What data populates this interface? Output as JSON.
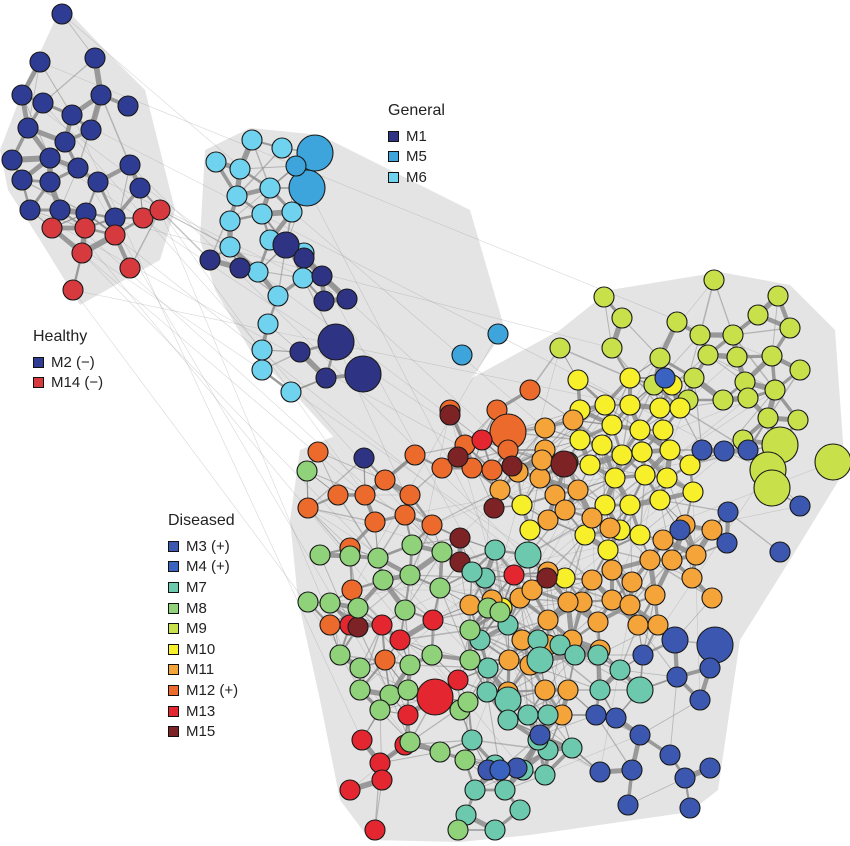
{
  "colors": {
    "M1": "#2e3483",
    "M5": "#3ea5dc",
    "M6": "#6fd2ee",
    "M2": "#2f3c93",
    "M14": "#d63a3f",
    "M3": "#3b57b0",
    "M4": "#3a62c0",
    "M7": "#6cc9ae",
    "M8": "#8fd27a",
    "M9": "#c8e04a",
    "M10": "#f7ef2a",
    "M11": "#f5a43a",
    "M12": "#ec6b2c",
    "M13": "#e3262f",
    "M15": "#7d2225"
  },
  "legends": [
    {
      "id": "general",
      "title": "General",
      "items": [
        {
          "key": "M1",
          "label": "M1"
        },
        {
          "key": "M5",
          "label": "M5"
        },
        {
          "key": "M6",
          "label": "M6"
        }
      ]
    },
    {
      "id": "healthy",
      "title": "Healthy",
      "items": [
        {
          "key": "M2",
          "label": "M2 (−)"
        },
        {
          "key": "M14",
          "label": "M14 (−)"
        }
      ]
    },
    {
      "id": "diseased",
      "title": "Diseased",
      "items": [
        {
          "key": "M3",
          "label": "M3 (+)"
        },
        {
          "key": "M4",
          "label": "M4 (+)"
        },
        {
          "key": "M7",
          "label": "M7"
        },
        {
          "key": "M8",
          "label": "M8"
        },
        {
          "key": "M9",
          "label": "M9"
        },
        {
          "key": "M10",
          "label": "M10"
        },
        {
          "key": "M11",
          "label": "M11"
        },
        {
          "key": "M12",
          "label": "M12 (+)"
        },
        {
          "key": "M13",
          "label": "M13"
        },
        {
          "key": "M15",
          "label": "M15"
        }
      ]
    }
  ],
  "modules": {
    "M2": [
      [
        62,
        14,
        "s"
      ],
      [
        40,
        62,
        "s"
      ],
      [
        95,
        58,
        "s"
      ],
      [
        22,
        95,
        "s"
      ],
      [
        43,
        103,
        "s"
      ],
      [
        72,
        115,
        "s"
      ],
      [
        101,
        95,
        "s"
      ],
      [
        128,
        106,
        "s"
      ],
      [
        28,
        128,
        "s"
      ],
      [
        65,
        142,
        "s"
      ],
      [
        91,
        130,
        "s"
      ],
      [
        12,
        160,
        "s"
      ],
      [
        50,
        158,
        "s"
      ],
      [
        98,
        182,
        "s"
      ],
      [
        130,
        165,
        "s"
      ],
      [
        22,
        180,
        "s"
      ],
      [
        50,
        182,
        "s"
      ],
      [
        78,
        168,
        "s"
      ],
      [
        30,
        210,
        "s"
      ],
      [
        60,
        210,
        "s"
      ],
      [
        86,
        213,
        "s"
      ],
      [
        115,
        218,
        "s"
      ],
      [
        140,
        188,
        "s"
      ]
    ],
    "M14": [
      [
        52,
        228,
        "s"
      ],
      [
        85,
        228,
        "s"
      ],
      [
        115,
        235,
        "s"
      ],
      [
        143,
        218,
        "s"
      ],
      [
        160,
        210,
        "s"
      ],
      [
        82,
        253,
        "s"
      ],
      [
        130,
        268,
        "s"
      ],
      [
        73,
        290,
        "s"
      ]
    ],
    "M5": [
      [
        315,
        153,
        "l"
      ],
      [
        307,
        188,
        "l"
      ],
      [
        296,
        166,
        "s"
      ],
      [
        462,
        355,
        "s"
      ],
      [
        498,
        334,
        "s"
      ]
    ],
    "M6": [
      [
        252,
        140,
        "s"
      ],
      [
        216,
        162,
        "s"
      ],
      [
        240,
        169,
        "s"
      ],
      [
        282,
        148,
        "s"
      ],
      [
        270,
        188,
        "s"
      ],
      [
        237,
        196,
        "s"
      ],
      [
        262,
        214,
        "s"
      ],
      [
        292,
        212,
        "s"
      ],
      [
        230,
        221,
        "s"
      ],
      [
        270,
        240,
        "s"
      ],
      [
        230,
        247,
        "s"
      ],
      [
        304,
        253,
        "s"
      ],
      [
        258,
        272,
        "s"
      ],
      [
        303,
        278,
        "s"
      ],
      [
        278,
        296,
        "s"
      ],
      [
        268,
        324,
        "s"
      ],
      [
        262,
        350,
        "s"
      ],
      [
        262,
        370,
        "s"
      ],
      [
        291,
        392,
        "s"
      ]
    ],
    "M1": [
      [
        286,
        245,
        "m"
      ],
      [
        210,
        260,
        "s"
      ],
      [
        240,
        268,
        "s"
      ],
      [
        304,
        258,
        "s"
      ],
      [
        322,
        276,
        "s"
      ],
      [
        324,
        301,
        "s"
      ],
      [
        347,
        299,
        "s"
      ],
      [
        336,
        342,
        "l"
      ],
      [
        300,
        352,
        "s"
      ],
      [
        326,
        378,
        "s"
      ],
      [
        363,
        374,
        "l"
      ],
      [
        364,
        458,
        "s"
      ]
    ],
    "M9": [
      [
        604,
        297,
        "s"
      ],
      [
        714,
        280,
        "s"
      ],
      [
        778,
        296,
        "s"
      ],
      [
        677,
        322,
        "s"
      ],
      [
        622,
        318,
        "s"
      ],
      [
        560,
        348,
        "s"
      ],
      [
        612,
        348,
        "s"
      ],
      [
        700,
        335,
        "s"
      ],
      [
        758,
        315,
        "s"
      ],
      [
        790,
        328,
        "s"
      ],
      [
        733,
        335,
        "s"
      ],
      [
        708,
        355,
        "s"
      ],
      [
        737,
        357,
        "s"
      ],
      [
        772,
        356,
        "s"
      ],
      [
        660,
        358,
        "s"
      ],
      [
        694,
        378,
        "s"
      ],
      [
        745,
        382,
        "s"
      ],
      [
        800,
        370,
        "s"
      ],
      [
        654,
        385,
        "s"
      ],
      [
        723,
        400,
        "s"
      ],
      [
        775,
        390,
        "s"
      ],
      [
        688,
        400,
        "s"
      ],
      [
        748,
        398,
        "s"
      ],
      [
        768,
        418,
        "s"
      ],
      [
        743,
        440,
        "s"
      ],
      [
        780,
        445,
        "l"
      ],
      [
        833,
        462,
        "l"
      ],
      [
        768,
        470,
        "l"
      ],
      [
        772,
        488,
        "l"
      ],
      [
        798,
        420,
        "s"
      ]
    ],
    "M10": [
      [
        630,
        378,
        "s"
      ],
      [
        672,
        385,
        "s"
      ],
      [
        578,
        380,
        "s"
      ],
      [
        605,
        405,
        "s"
      ],
      [
        630,
        405,
        "s"
      ],
      [
        660,
        408,
        "s"
      ],
      [
        680,
        408,
        "s"
      ],
      [
        580,
        410,
        "s"
      ],
      [
        612,
        425,
        "s"
      ],
      [
        640,
        430,
        "s"
      ],
      [
        663,
        430,
        "s"
      ],
      [
        670,
        450,
        "s"
      ],
      [
        642,
        452,
        "s"
      ],
      [
        622,
        455,
        "s"
      ],
      [
        602,
        445,
        "s"
      ],
      [
        580,
        440,
        "s"
      ],
      [
        590,
        465,
        "s"
      ],
      [
        615,
        478,
        "s"
      ],
      [
        645,
        475,
        "s"
      ],
      [
        667,
        478,
        "s"
      ],
      [
        690,
        465,
        "s"
      ],
      [
        693,
        492,
        "s"
      ],
      [
        660,
        500,
        "s"
      ],
      [
        630,
        505,
        "s"
      ],
      [
        605,
        505,
        "s"
      ],
      [
        620,
        530,
        "s"
      ],
      [
        585,
        535,
        "s"
      ],
      [
        608,
        550,
        "s"
      ],
      [
        522,
        505,
        "s"
      ],
      [
        530,
        530,
        "s"
      ],
      [
        502,
        608,
        "s"
      ],
      [
        565,
        578,
        "s"
      ],
      [
        640,
        535,
        "s"
      ]
    ],
    "M11": [
      [
        545,
        428,
        "s"
      ],
      [
        573,
        420,
        "s"
      ],
      [
        545,
        450,
        "s"
      ],
      [
        568,
        462,
        "s"
      ],
      [
        540,
        478,
        "s"
      ],
      [
        555,
        495,
        "s"
      ],
      [
        548,
        520,
        "s"
      ],
      [
        565,
        510,
        "s"
      ],
      [
        578,
        490,
        "s"
      ],
      [
        592,
        518,
        "s"
      ],
      [
        610,
        528,
        "s"
      ],
      [
        612,
        570,
        "s"
      ],
      [
        592,
        580,
        "s"
      ],
      [
        582,
        602,
        "s"
      ],
      [
        598,
        622,
        "s"
      ],
      [
        568,
        602,
        "s"
      ],
      [
        548,
        620,
        "s"
      ],
      [
        548,
        645,
        "s"
      ],
      [
        572,
        640,
        "s"
      ],
      [
        600,
        650,
        "s"
      ],
      [
        612,
        600,
        "s"
      ],
      [
        632,
        582,
        "s"
      ],
      [
        655,
        595,
        "s"
      ],
      [
        650,
        560,
        "s"
      ],
      [
        672,
        560,
        "s"
      ],
      [
        692,
        578,
        "s"
      ],
      [
        712,
        598,
        "s"
      ],
      [
        696,
        555,
        "s"
      ],
      [
        663,
        540,
        "s"
      ],
      [
        685,
        525,
        "s"
      ],
      [
        712,
        530,
        "s"
      ],
      [
        630,
        605,
        "s"
      ],
      [
        658,
        625,
        "s"
      ],
      [
        638,
        625,
        "s"
      ],
      [
        542,
        460,
        "s"
      ],
      [
        518,
        472,
        "s"
      ],
      [
        500,
        490,
        "s"
      ],
      [
        509,
        660,
        "s"
      ],
      [
        522,
        640,
        "s"
      ],
      [
        545,
        690,
        "s"
      ],
      [
        568,
        690,
        "s"
      ],
      [
        562,
        715,
        "s"
      ],
      [
        508,
        692,
        "s"
      ],
      [
        492,
        600,
        "s"
      ],
      [
        520,
        598,
        "s"
      ],
      [
        470,
        605,
        "s"
      ],
      [
        548,
        572,
        "s"
      ],
      [
        532,
        590,
        "s"
      ],
      [
        530,
        665,
        "s"
      ]
    ],
    "M12": [
      [
        318,
        452,
        "s"
      ],
      [
        308,
        508,
        "s"
      ],
      [
        338,
        495,
        "s"
      ],
      [
        365,
        495,
        "s"
      ],
      [
        385,
        480,
        "s"
      ],
      [
        410,
        495,
        "s"
      ],
      [
        415,
        455,
        "s"
      ],
      [
        442,
        468,
        "s"
      ],
      [
        432,
        525,
        "s"
      ],
      [
        405,
        515,
        "s"
      ],
      [
        375,
        522,
        "s"
      ],
      [
        350,
        548,
        "s"
      ],
      [
        465,
        445,
        "s"
      ],
      [
        472,
        468,
        "s"
      ],
      [
        497,
        410,
        "s"
      ],
      [
        508,
        432,
        "l"
      ],
      [
        530,
        390,
        "s"
      ],
      [
        450,
        410,
        "s"
      ],
      [
        492,
        470,
        "s"
      ],
      [
        508,
        450,
        "s"
      ],
      [
        385,
        660,
        "s"
      ],
      [
        330,
        625,
        "s"
      ],
      [
        352,
        590,
        "s"
      ]
    ],
    "M13": [
      [
        482,
        440,
        "s"
      ],
      [
        514,
        575,
        "s"
      ],
      [
        350,
        625,
        "s"
      ],
      [
        382,
        625,
        "s"
      ],
      [
        400,
        640,
        "s"
      ],
      [
        433,
        620,
        "s"
      ],
      [
        435,
        697,
        "l"
      ],
      [
        458,
        680,
        "s"
      ],
      [
        408,
        715,
        "s"
      ],
      [
        362,
        740,
        "s"
      ],
      [
        405,
        745,
        "s"
      ],
      [
        380,
        763,
        "s"
      ],
      [
        350,
        790,
        "s"
      ],
      [
        382,
        780,
        "s"
      ],
      [
        375,
        830,
        "s"
      ]
    ],
    "M15": [
      [
        450,
        415,
        "s"
      ],
      [
        458,
        457,
        "s"
      ],
      [
        512,
        466,
        "s"
      ],
      [
        564,
        464,
        "m"
      ],
      [
        494,
        508,
        "s"
      ],
      [
        460,
        538,
        "s"
      ],
      [
        460,
        562,
        "s"
      ],
      [
        547,
        578,
        "s"
      ],
      [
        358,
        627,
        "s"
      ]
    ],
    "M7": [
      [
        495,
        550,
        "s"
      ],
      [
        528,
        555,
        "m"
      ],
      [
        485,
        578,
        "s"
      ],
      [
        472,
        572,
        "s"
      ],
      [
        480,
        640,
        "s"
      ],
      [
        508,
        625,
        "s"
      ],
      [
        538,
        640,
        "s"
      ],
      [
        560,
        645,
        "s"
      ],
      [
        540,
        660,
        "m"
      ],
      [
        575,
        655,
        "s"
      ],
      [
        598,
        655,
        "s"
      ],
      [
        620,
        670,
        "s"
      ],
      [
        640,
        690,
        "m"
      ],
      [
        600,
        690,
        "s"
      ],
      [
        488,
        668,
        "s"
      ],
      [
        508,
        700,
        "m"
      ],
      [
        487,
        692,
        "s"
      ],
      [
        508,
        720,
        "s"
      ],
      [
        528,
        715,
        "s"
      ],
      [
        548,
        750,
        "s"
      ],
      [
        572,
        748,
        "s"
      ],
      [
        538,
        740,
        "s"
      ],
      [
        523,
        770,
        "s"
      ],
      [
        495,
        765,
        "s"
      ],
      [
        475,
        790,
        "s"
      ],
      [
        505,
        790,
        "s"
      ],
      [
        520,
        810,
        "s"
      ],
      [
        495,
        830,
        "s"
      ],
      [
        466,
        815,
        "s"
      ],
      [
        545,
        775,
        "s"
      ],
      [
        472,
        740,
        "s"
      ],
      [
        548,
        715,
        "s"
      ]
    ],
    "M8": [
      [
        307,
        471,
        "s"
      ],
      [
        320,
        555,
        "s"
      ],
      [
        350,
        556,
        "s"
      ],
      [
        378,
        558,
        "s"
      ],
      [
        412,
        545,
        "s"
      ],
      [
        383,
        580,
        "s"
      ],
      [
        410,
        575,
        "s"
      ],
      [
        442,
        552,
        "s"
      ],
      [
        440,
        588,
        "s"
      ],
      [
        308,
        602,
        "s"
      ],
      [
        330,
        603,
        "s"
      ],
      [
        358,
        608,
        "s"
      ],
      [
        405,
        610,
        "s"
      ],
      [
        470,
        630,
        "s"
      ],
      [
        488,
        608,
        "s"
      ],
      [
        500,
        612,
        "s"
      ],
      [
        340,
        655,
        "s"
      ],
      [
        360,
        668,
        "s"
      ],
      [
        410,
        665,
        "s"
      ],
      [
        432,
        655,
        "s"
      ],
      [
        470,
        660,
        "s"
      ],
      [
        360,
        690,
        "s"
      ],
      [
        390,
        695,
        "s"
      ],
      [
        408,
        690,
        "s"
      ],
      [
        380,
        710,
        "s"
      ],
      [
        460,
        710,
        "s"
      ],
      [
        468,
        702,
        "s"
      ],
      [
        410,
        742,
        "s"
      ],
      [
        440,
        752,
        "s"
      ],
      [
        465,
        760,
        "s"
      ],
      [
        458,
        830,
        "s"
      ]
    ],
    "M3": [
      [
        702,
        450,
        "s"
      ],
      [
        724,
        451,
        "s"
      ],
      [
        748,
        450,
        "s"
      ],
      [
        728,
        512,
        "s"
      ],
      [
        727,
        543,
        "s"
      ],
      [
        680,
        530,
        "s"
      ],
      [
        675,
        640,
        "m"
      ],
      [
        715,
        645,
        "l"
      ],
      [
        643,
        655,
        "s"
      ],
      [
        677,
        677,
        "s"
      ],
      [
        700,
        700,
        "s"
      ],
      [
        710,
        668,
        "s"
      ],
      [
        596,
        715,
        "s"
      ],
      [
        616,
        718,
        "s"
      ],
      [
        640,
        735,
        "s"
      ],
      [
        670,
        755,
        "s"
      ],
      [
        685,
        778,
        "s"
      ],
      [
        710,
        768,
        "s"
      ],
      [
        600,
        772,
        "s"
      ],
      [
        632,
        770,
        "s"
      ],
      [
        628,
        805,
        "s"
      ],
      [
        690,
        808,
        "s"
      ],
      [
        540,
        735,
        "s"
      ],
      [
        517,
        768,
        "s"
      ],
      [
        488,
        770,
        "s"
      ],
      [
        800,
        506,
        "s"
      ],
      [
        780,
        552,
        "s"
      ]
    ],
    "M4": [
      [
        665,
        378,
        "s"
      ],
      [
        500,
        770,
        "s"
      ]
    ]
  }
}
